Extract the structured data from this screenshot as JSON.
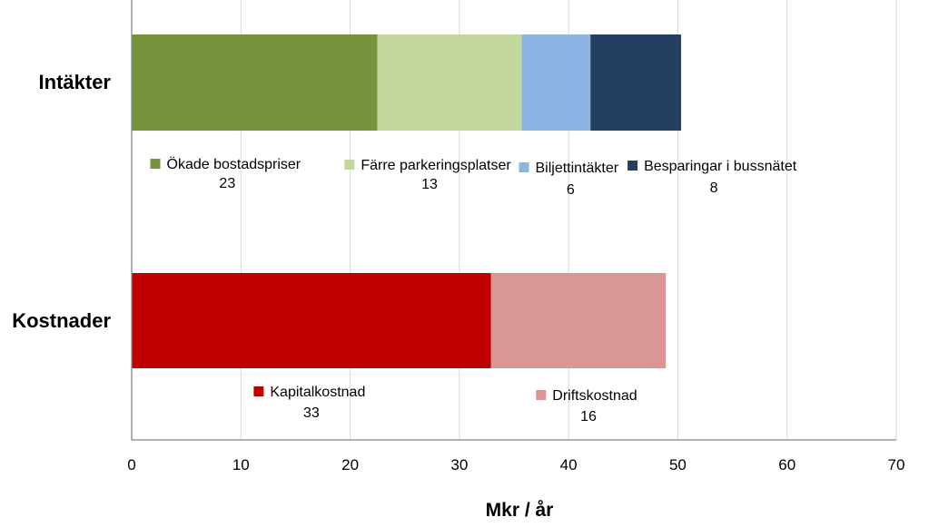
{
  "chart_data": {
    "type": "bar",
    "orientation": "horizontal",
    "stacked": true,
    "categories": [
      "Intäkter",
      "Kostnader"
    ],
    "xlabel": "Mkr / år",
    "xlim": [
      0,
      70
    ],
    "xticks": [
      "0",
      "10",
      "20",
      "30",
      "40",
      "50",
      "60",
      "70"
    ],
    "grid": true,
    "bars": [
      {
        "category": "Intäkter",
        "segments": [
          {
            "name": "Ökade bostadspriser",
            "value": 22.5,
            "label": "23",
            "color": "#77933C"
          },
          {
            "name": "Färre parkeringsplatser",
            "value": 13.2,
            "label": "13",
            "color": "#C3D69B"
          },
          {
            "name": "Biljettintäkter",
            "value": 6.3,
            "label": "6",
            "color": "#8EB4E3"
          },
          {
            "name": "Besparingar i bussnätet",
            "value": 8.3,
            "label": "8",
            "color": "#243F60"
          }
        ]
      },
      {
        "category": "Kostnader",
        "segments": [
          {
            "name": "Kapitalkostnad",
            "value": 32.9,
            "label": "33",
            "color": "#C00000"
          },
          {
            "name": "Driftskostnad",
            "value": 16.0,
            "label": "16",
            "color": "#D99694"
          }
        ]
      }
    ]
  }
}
